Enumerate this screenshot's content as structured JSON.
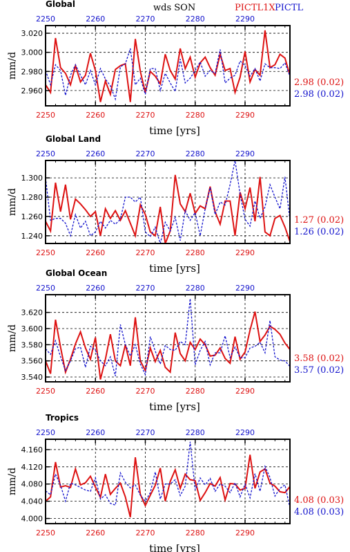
{
  "header": {
    "variable": "wds SON",
    "legend_red": "PICTL1X",
    "legend_blue": "PICTL"
  },
  "colors": {
    "red": "#dd1111",
    "blue": "#1111cc",
    "grid": "#000000"
  },
  "chart_data": [
    {
      "type": "line",
      "title": "Global",
      "xlabel": "time [yrs]",
      "ylabel": "mm/d",
      "xlim": [
        2250,
        2299
      ],
      "ylim": [
        2.944,
        3.028
      ],
      "x_ticks": [
        "2250",
        "2260",
        "2270",
        "2280",
        "2290"
      ],
      "y_ticks": [
        "2.960",
        "2.980",
        "3.000",
        "3.020"
      ],
      "series": [
        {
          "name": "PICTL1X",
          "color": "red",
          "stat": "2.98 (0.02)",
          "values": [
            2.966,
            2.958,
            3.015,
            2.984,
            2.978,
            2.966,
            2.986,
            2.969,
            2.976,
            2.999,
            2.981,
            2.948,
            2.97,
            2.956,
            2.982,
            2.986,
            2.988,
            2.948,
            3.014,
            2.98,
            2.958,
            2.98,
            2.975,
            2.967,
            2.998,
            2.981,
            2.972,
            3.004,
            2.983,
            2.995,
            2.974,
            2.989,
            2.995,
            2.984,
            2.976,
            2.998,
            2.981,
            2.983,
            2.958,
            2.974,
            3.001,
            2.969,
            2.982,
            2.976,
            3.023,
            2.984,
            2.987,
            2.998,
            2.994,
            2.976,
            2.973,
            2.982
          ]
        },
        {
          "name": "PICTL",
          "color": "blue",
          "stat": "2.98 (0.02)",
          "values": [
            2.981,
            2.966,
            2.987,
            2.981,
            2.955,
            2.976,
            2.987,
            2.976,
            2.966,
            2.981,
            2.966,
            2.983,
            2.972,
            2.965,
            2.951,
            2.985,
            2.988,
            3.004,
            2.966,
            2.973,
            2.956,
            2.983,
            2.983,
            2.96,
            2.978,
            2.968,
            2.959,
            2.993,
            2.968,
            2.973,
            2.981,
            2.99,
            2.975,
            2.981,
            2.978,
            3.003,
            2.968,
            2.973,
            2.976,
            2.991,
            2.986,
            2.975,
            2.983,
            2.97,
            2.988,
            2.984,
            2.984,
            2.983,
            2.989,
            2.975,
            2.998,
            2.974,
            3.006
          ]
        }
      ]
    },
    {
      "type": "line",
      "title": "Global Land",
      "xlabel": "time [yrs]",
      "ylabel": "mm/d",
      "xlim": [
        2250,
        2299
      ],
      "ylim": [
        1.232,
        1.318
      ],
      "x_ticks": [
        "2250",
        "2260",
        "2270",
        "2280",
        "2290"
      ],
      "y_ticks": [
        "1.240",
        "1.260",
        "1.280",
        "1.300"
      ],
      "series": [
        {
          "name": "PICTL1X",
          "color": "red",
          "stat": "1.27 (0.02)",
          "values": [
            1.255,
            1.245,
            1.295,
            1.265,
            1.293,
            1.257,
            1.278,
            1.273,
            1.267,
            1.26,
            1.265,
            1.24,
            1.268,
            1.258,
            1.266,
            1.256,
            1.266,
            1.253,
            1.24,
            1.272,
            1.262,
            1.244,
            1.24,
            1.27,
            1.232,
            1.245,
            1.303,
            1.273,
            1.265,
            1.284,
            1.263,
            1.271,
            1.268,
            1.291,
            1.265,
            1.252,
            1.276,
            1.276,
            1.24,
            1.285,
            1.268,
            1.29,
            1.255,
            1.301,
            1.244,
            1.24,
            1.258,
            1.261,
            1.249,
            1.234,
            1.263,
            1.249
          ]
        },
        {
          "name": "PICTL",
          "color": "blue",
          "stat": "1.26 (0.02)",
          "values": [
            1.3,
            1.256,
            1.258,
            1.258,
            1.253,
            1.24,
            1.262,
            1.248,
            1.255,
            1.24,
            1.244,
            1.255,
            1.248,
            1.256,
            1.252,
            1.257,
            1.28,
            1.28,
            1.275,
            1.28,
            1.244,
            1.239,
            1.249,
            1.232,
            1.254,
            1.245,
            1.259,
            1.235,
            1.266,
            1.256,
            1.264,
            1.24,
            1.268,
            1.29,
            1.262,
            1.275,
            1.272,
            1.293,
            1.318,
            1.283,
            1.257,
            1.25,
            1.276,
            1.258,
            1.27,
            1.293,
            1.28,
            1.268,
            1.301,
            1.256,
            1.251,
            1.305
          ]
        }
      ]
    },
    {
      "type": "line",
      "title": "Global Ocean",
      "xlabel": "time [yrs]",
      "ylabel": "mm/d",
      "xlim": [
        2250,
        2299
      ],
      "ylim": [
        3.534,
        3.642
      ],
      "x_ticks": [
        "2250",
        "2260",
        "2270",
        "2280",
        "2290"
      ],
      "y_ticks": [
        "3.540",
        "3.560",
        "3.580",
        "3.600",
        "3.620"
      ],
      "series": [
        {
          "name": "PICTL1X",
          "color": "red",
          "stat": "3.58 (0.02)",
          "values": [
            3.56,
            3.544,
            3.611,
            3.577,
            3.546,
            3.562,
            3.581,
            3.596,
            3.576,
            3.562,
            3.589,
            3.537,
            3.562,
            3.593,
            3.56,
            3.554,
            3.58,
            3.554,
            3.614,
            3.56,
            3.548,
            3.576,
            3.559,
            3.573,
            3.552,
            3.546,
            3.595,
            3.569,
            3.56,
            3.583,
            3.574,
            3.587,
            3.58,
            3.566,
            3.567,
            3.576,
            3.563,
            3.557,
            3.59,
            3.562,
            3.571,
            3.598,
            3.621,
            3.584,
            3.592,
            3.603,
            3.599,
            3.593,
            3.582,
            3.574,
            3.562,
            3.568
          ]
        },
        {
          "name": "PICTL",
          "color": "blue",
          "stat": "3.57 (0.02)",
          "values": [
            3.575,
            3.568,
            3.585,
            3.565,
            3.548,
            3.56,
            3.575,
            3.577,
            3.552,
            3.578,
            3.573,
            3.56,
            3.554,
            3.565,
            3.541,
            3.605,
            3.58,
            3.566,
            3.58,
            3.556,
            3.543,
            3.59,
            3.572,
            3.556,
            3.579,
            3.574,
            3.573,
            3.584,
            3.58,
            3.637,
            3.555,
            3.573,
            3.584,
            3.555,
            3.57,
            3.57,
            3.591,
            3.564,
            3.577,
            3.564,
            3.564,
            3.576,
            3.578,
            3.583,
            3.57,
            3.61,
            3.565,
            3.561,
            3.56,
            3.553,
            3.56,
            3.581
          ]
        }
      ]
    },
    {
      "type": "line",
      "title": "Tropics",
      "xlabel": "time [yrs]",
      "ylabel": "mm/d",
      "xlim": [
        2250,
        2299
      ],
      "ylim": [
        3.988,
        4.184
      ],
      "x_ticks": [
        "2250",
        "2260",
        "2270",
        "2280",
        "2290"
      ],
      "y_ticks": [
        "4.000",
        "4.040",
        "4.080",
        "4.120",
        "4.160"
      ],
      "series": [
        {
          "name": "PICTL1X",
          "color": "red",
          "stat": "4.08 (0.03)",
          "values": [
            4.04,
            4.05,
            4.131,
            4.073,
            4.076,
            4.072,
            4.115,
            4.078,
            4.083,
            4.098,
            4.073,
            4.049,
            4.103,
            4.056,
            4.07,
            4.082,
            4.05,
            4.003,
            4.142,
            4.056,
            4.03,
            4.054,
            4.077,
            4.117,
            4.04,
            4.086,
            4.113,
            4.07,
            4.103,
            4.09,
            4.088,
            4.042,
            4.06,
            4.081,
            4.075,
            4.095,
            4.043,
            4.081,
            4.08,
            4.066,
            4.07,
            4.148,
            4.07,
            4.108,
            4.115,
            4.082,
            4.075,
            4.062,
            4.06,
            4.074,
            4.05,
            4.088
          ]
        },
        {
          "name": "PICTL",
          "color": "blue",
          "stat": "4.08 (0.03)",
          "values": [
            4.064,
            4.055,
            4.103,
            4.077,
            4.04,
            4.082,
            4.078,
            4.072,
            4.066,
            4.063,
            4.094,
            4.045,
            4.055,
            4.035,
            4.031,
            4.106,
            4.084,
            4.071,
            4.078,
            4.054,
            4.04,
            4.06,
            4.108,
            4.045,
            4.08,
            4.08,
            4.09,
            4.053,
            4.075,
            4.178,
            4.066,
            4.094,
            4.078,
            4.093,
            4.063,
            4.08,
            4.075,
            4.06,
            4.083,
            4.05,
            4.08,
            4.048,
            4.104,
            4.063,
            4.121,
            4.095,
            4.052,
            4.07,
            4.078,
            4.025,
            4.058,
            4.09
          ]
        }
      ]
    }
  ]
}
